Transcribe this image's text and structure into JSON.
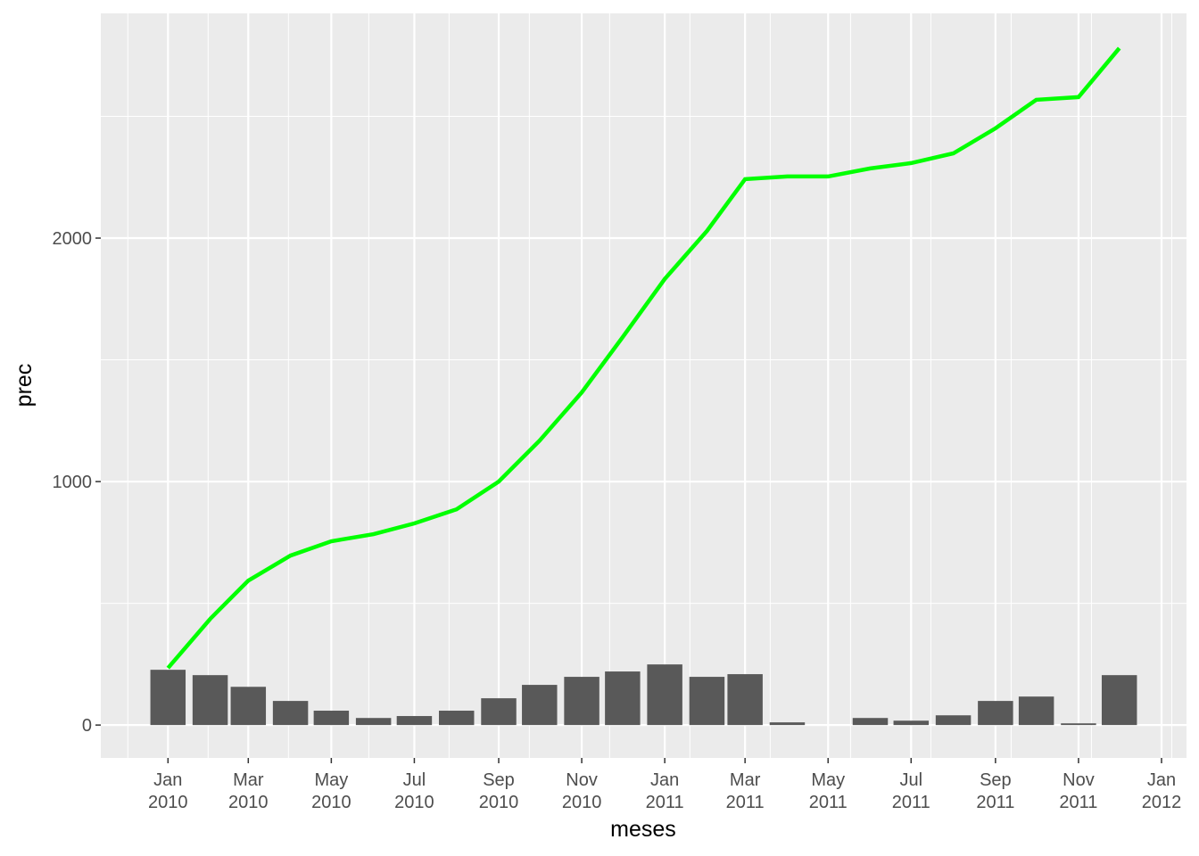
{
  "chart_data": {
    "type": "combo",
    "x": [
      "2010-01",
      "2010-02",
      "2010-03",
      "2010-04",
      "2010-05",
      "2010-06",
      "2010-07",
      "2010-08",
      "2010-09",
      "2010-10",
      "2010-11",
      "2010-12",
      "2011-01",
      "2011-02",
      "2011-03",
      "2011-04",
      "2011-05",
      "2011-06",
      "2011-07",
      "2011-08",
      "2011-09",
      "2011-10",
      "2011-11",
      "2011-12"
    ],
    "series": [
      {
        "type": "bar",
        "color": "#595959",
        "values": [
          227,
          205,
          157,
          99,
          59,
          29,
          37,
          59,
          110,
          165,
          198,
          220,
          249,
          198,
          209,
          11,
          0,
          29,
          18,
          40,
          99,
          117,
          7,
          205
        ]
      },
      {
        "type": "line",
        "color": "#00ff00",
        "values": [
          234,
          436,
          593,
          696,
          755,
          784,
          828,
          886,
          1000,
          1168,
          1366,
          1593,
          1832,
          2029,
          2242,
          2253,
          2253,
          2286,
          2308,
          2348,
          2451,
          2568,
          2579,
          2780
        ]
      }
    ],
    "xlabel": "meses",
    "ylabel": "prec",
    "xlim": [
      "2009-12",
      "2012-01"
    ],
    "xticks": [
      {
        "value": "2010-01",
        "label": "Jan\n2010"
      },
      {
        "value": "2010-03",
        "label": "Mar\n2010"
      },
      {
        "value": "2010-05",
        "label": "May\n2010"
      },
      {
        "value": "2010-07",
        "label": "Jul\n2010"
      },
      {
        "value": "2010-09",
        "label": "Sep\n2010"
      },
      {
        "value": "2010-11",
        "label": "Nov\n2010"
      },
      {
        "value": "2011-01",
        "label": "Jan\n2011"
      },
      {
        "value": "2011-03",
        "label": "Mar\n2011"
      },
      {
        "value": "2011-05",
        "label": "May\n2011"
      },
      {
        "value": "2011-07",
        "label": "Jul\n2011"
      },
      {
        "value": "2011-09",
        "label": "Sep\n2011"
      },
      {
        "value": "2011-11",
        "label": "Nov\n2011"
      },
      {
        "value": "2012-01",
        "label": "Jan\n2012"
      }
    ],
    "ylim": [
      -135,
      2923
    ],
    "yticks": [
      0,
      1000,
      2000
    ],
    "grid": true,
    "minor_grid": true
  }
}
